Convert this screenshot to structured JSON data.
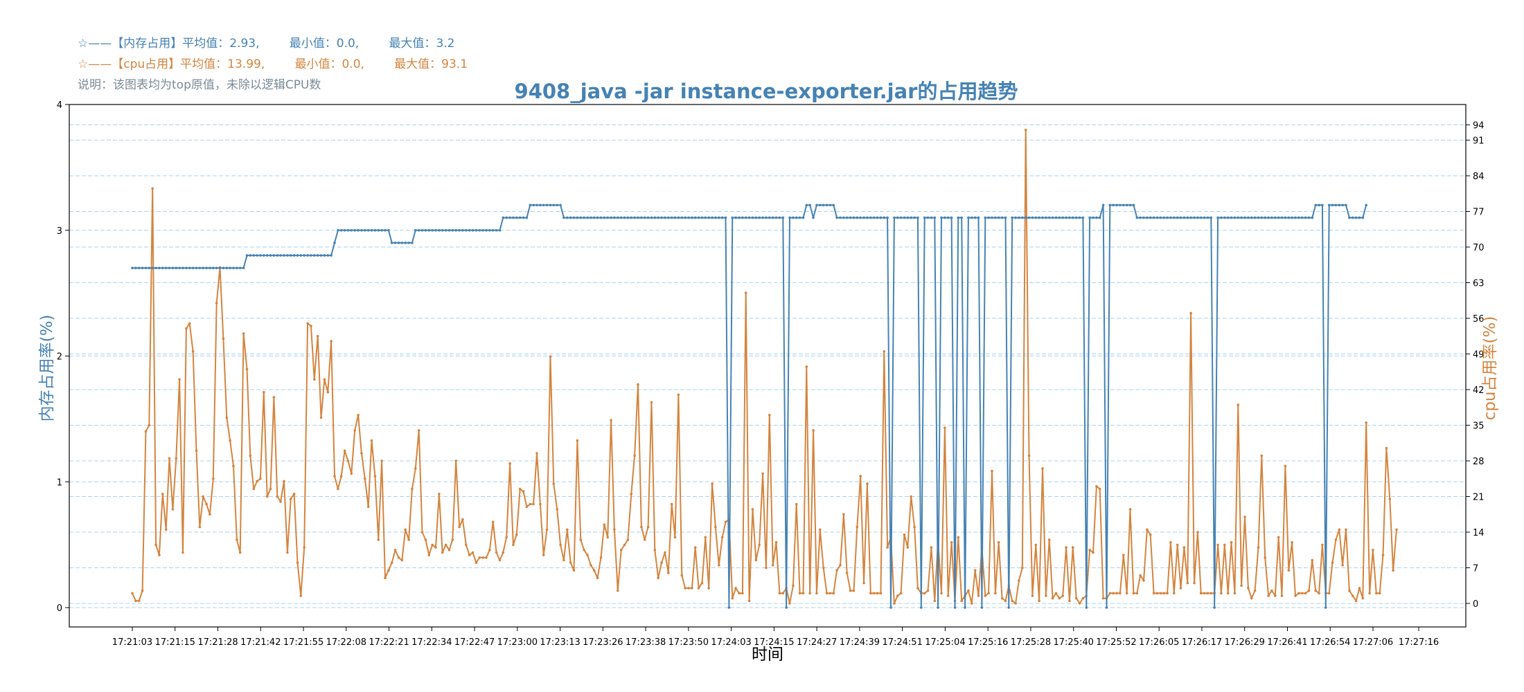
{
  "legend": {
    "memory": {
      "prefix": "☆——【内存占用】平均值：",
      "avg": "2.93,",
      "min_label": "最小值：",
      "min": "0.0,",
      "max_label": "最大值：",
      "max": "3.2"
    },
    "cpu": {
      "prefix": "☆——【cpu占用】平均值：",
      "avg": "13.99,",
      "min_label": "最小值：",
      "min": "0.0,",
      "max_label": "最大值：",
      "max": "93.1"
    },
    "note": "说明：该图表均为top原值，未除以逻辑CPU数"
  },
  "colors": {
    "memory": "#4682b4",
    "cpu": "#d4843e",
    "grid": "#a9d3ec",
    "axis": "#000000"
  },
  "chart_data": {
    "type": "line",
    "title": "9408_java -jar instance-exporter.jar的占用趋势",
    "xlabel": "时间",
    "ylabel_left": "内存占用率(%)",
    "ylabel_right": "cpu占用率(%)",
    "ylim_left": [
      0,
      4
    ],
    "ylim_right": [
      -2,
      96
    ],
    "yticks_left": [
      0,
      1,
      2,
      3,
      4
    ],
    "yticks_right": [
      0,
      7,
      14,
      21,
      28,
      35,
      42,
      49,
      56,
      63,
      70,
      77,
      84,
      91,
      94
    ],
    "x_tick_labels": [
      "17:21:03",
      "17:21:15",
      "17:21:28",
      "17:21:42",
      "17:21:55",
      "17:22:08",
      "17:22:21",
      "17:22:34",
      "17:22:47",
      "17:23:00",
      "17:23:13",
      "17:23:26",
      "17:23:38",
      "17:23:50",
      "17:24:03",
      "17:24:15",
      "17:24:27",
      "17:24:39",
      "17:24:51",
      "17:25:04",
      "17:25:16",
      "17:25:28",
      "17:25:40",
      "17:25:52",
      "17:26:05",
      "17:26:17",
      "17:26:29",
      "17:26:41",
      "17:26:54",
      "17:27:06",
      "17:27:16"
    ],
    "grid": true,
    "legend_position": "top-left",
    "series": [
      {
        "name": "内存占用",
        "axis": "left",
        "values": [
          2.7,
          2.7,
          2.7,
          2.7,
          2.7,
          2.7,
          2.7,
          2.7,
          2.7,
          2.7,
          2.7,
          2.7,
          2.7,
          2.7,
          2.7,
          2.7,
          2.7,
          2.7,
          2.7,
          2.7,
          2.7,
          2.7,
          2.7,
          2.7,
          2.7,
          2.7,
          2.7,
          2.7,
          2.7,
          2.7,
          2.7,
          2.7,
          2.7,
          2.7,
          2.8,
          2.8,
          2.8,
          2.8,
          2.8,
          2.8,
          2.8,
          2.8,
          2.8,
          2.8,
          2.8,
          2.8,
          2.8,
          2.8,
          2.8,
          2.8,
          2.8,
          2.8,
          2.8,
          2.8,
          2.8,
          2.8,
          2.8,
          2.8,
          2.8,
          2.8,
          2.9,
          3.0,
          3.0,
          3.0,
          3.0,
          3.0,
          3.0,
          3.0,
          3.0,
          3.0,
          3.0,
          3.0,
          3.0,
          3.0,
          3.0,
          3.0,
          3.0,
          2.9,
          2.9,
          2.9,
          2.9,
          2.9,
          2.9,
          2.9,
          3.0,
          3.0,
          3.0,
          3.0,
          3.0,
          3.0,
          3.0,
          3.0,
          3.0,
          3.0,
          3.0,
          3.0,
          3.0,
          3.0,
          3.0,
          3.0,
          3.0,
          3.0,
          3.0,
          3.0,
          3.0,
          3.0,
          3.0,
          3.0,
          3.0,
          3.0,
          3.1,
          3.1,
          3.1,
          3.1,
          3.1,
          3.1,
          3.1,
          3.1,
          3.2,
          3.2,
          3.2,
          3.2,
          3.2,
          3.2,
          3.2,
          3.2,
          3.2,
          3.2,
          3.1,
          3.1,
          3.1,
          3.1,
          3.1,
          3.1,
          3.1,
          3.1,
          3.1,
          3.1,
          3.1,
          3.1,
          3.1,
          3.1,
          3.1,
          3.1,
          3.1,
          3.1,
          3.1,
          3.1,
          3.1,
          3.1,
          3.1,
          3.1,
          3.1,
          3.1,
          3.1,
          3.1,
          3.1,
          3.1,
          3.1,
          3.1,
          3.1,
          3.1,
          3.1,
          3.1,
          3.1,
          3.1,
          3.1,
          3.1,
          3.1,
          3.1,
          3.1,
          3.1,
          3.1,
          3.1,
          3.1,
          3.1,
          3.1,
          0.0,
          3.1,
          3.1,
          3.1,
          3.1,
          3.1,
          3.1,
          3.1,
          3.1,
          3.1,
          3.1,
          3.1,
          3.1,
          3.1,
          3.1,
          3.1,
          3.1,
          0.0,
          3.1,
          3.1,
          3.1,
          3.1,
          3.1,
          3.2,
          3.2,
          3.1,
          3.2,
          3.2,
          3.2,
          3.2,
          3.2,
          3.2,
          3.1,
          3.1,
          3.1,
          3.1,
          3.1,
          3.1,
          3.1,
          3.1,
          3.1,
          3.1,
          3.1,
          3.1,
          3.1,
          3.1,
          3.1,
          3.1,
          0.0,
          3.1,
          3.1,
          3.1,
          3.1,
          3.1,
          3.1,
          3.1,
          3.1,
          0.0,
          3.1,
          3.1,
          3.1,
          3.1,
          0.0,
          3.1,
          3.1,
          3.1,
          3.1,
          0.0,
          3.1,
          3.1,
          0.0,
          3.1,
          3.1,
          3.1,
          3.1,
          0.0,
          3.1,
          3.1,
          3.1,
          3.1,
          3.1,
          3.1,
          3.1,
          0.0,
          3.1,
          3.1,
          3.1,
          3.1,
          3.1,
          3.1,
          3.1,
          3.1,
          3.1,
          3.1,
          3.1,
          3.1,
          3.1,
          3.1,
          3.1,
          3.1,
          3.1,
          3.1,
          3.1,
          3.1,
          3.1,
          3.1,
          0.0,
          3.1,
          3.1,
          3.1,
          3.1,
          3.2,
          0.0,
          3.2,
          3.2,
          3.2,
          3.2,
          3.2,
          3.2,
          3.2,
          3.2,
          3.1,
          3.1,
          3.1,
          3.1,
          3.1,
          3.1,
          3.1,
          3.1,
          3.1,
          3.1,
          3.1,
          3.1,
          3.1,
          3.1,
          3.1,
          3.1,
          3.1,
          3.1,
          3.1,
          3.1,
          3.1,
          3.1,
          3.1,
          0.0,
          3.1,
          3.1,
          3.1,
          3.1,
          3.1,
          3.1,
          3.1,
          3.1,
          3.1,
          3.1,
          3.1,
          3.1,
          3.1,
          3.1,
          3.1,
          3.1,
          3.1,
          3.1,
          3.1,
          3.1,
          3.1,
          3.1,
          3.1,
          3.1,
          3.1,
          3.1,
          3.1,
          3.1,
          3.1,
          3.2,
          3.2,
          3.2,
          0.0,
          3.2,
          3.2,
          3.2,
          3.2,
          3.2,
          3.2,
          3.1,
          3.1,
          3.1,
          3.1,
          3.1,
          3.2
        ]
      },
      {
        "name": "cpu占用",
        "axis": "right",
        "values": [
          2.0,
          0.5,
          0.5,
          2.5,
          33.8,
          35.0,
          81.5,
          11.5,
          9.5,
          21.5,
          14.5,
          28.5,
          18.5,
          28.5,
          44.0,
          10.0,
          54.0,
          55.0,
          49.5,
          30.0,
          15.0,
          21.0,
          19.5,
          17.5,
          24.5,
          59.0,
          66.0,
          52.0,
          36.5,
          32.0,
          27.0,
          12.5,
          10.0,
          53.0,
          46.0,
          29.0,
          22.5,
          24.0,
          24.5,
          41.5,
          21.0,
          22.5,
          40.5,
          21.0,
          20.0,
          24.0,
          10.0,
          20.5,
          21.5,
          8.0,
          1.5,
          11.0,
          55.0,
          54.5,
          44.0,
          52.5,
          36.5,
          44.0,
          41.5,
          51.5,
          25.0,
          22.5,
          25.0,
          30.0,
          28.0,
          25.5,
          34.0,
          37.0,
          29.5,
          24.5,
          19.0,
          32.0,
          25.0,
          12.5,
          28.0,
          5.0,
          6.5,
          8.0,
          10.5,
          9.0,
          8.5,
          14.5,
          12.5,
          22.5,
          26.5,
          34.0,
          14.0,
          12.5,
          9.5,
          11.5,
          11.0,
          21.5,
          10.0,
          11.5,
          10.5,
          12.5,
          28.0,
          15.0,
          16.5,
          11.5,
          9.5,
          10.0,
          8.0,
          9.0,
          9.0,
          9.0,
          10.5,
          16.0,
          10.0,
          8.5,
          10.0,
          13.0,
          27.5,
          11.5,
          13.5,
          22.5,
          22.0,
          19.0,
          19.5,
          19.5,
          29.5,
          19.5,
          9.5,
          14.5,
          48.5,
          23.5,
          18.5,
          11.5,
          8.5,
          14.5,
          8.0,
          6.5,
          32.0,
          12.5,
          10.5,
          9.5,
          7.5,
          6.5,
          5.0,
          9.0,
          15.5,
          13.0,
          36.0,
          14.5,
          2.5,
          10.5,
          11.5,
          12.5,
          21.5,
          29.0,
          43.0,
          15.0,
          12.5,
          15.0,
          39.5,
          10.5,
          5.0,
          8.0,
          10.0,
          6.0,
          19.5,
          13.0,
          41.0,
          5.5,
          3.0,
          3.0,
          3.0,
          11.0,
          3.0,
          4.0,
          13.0,
          3.0,
          23.5,
          15.0,
          7.5,
          13.0,
          16.0,
          16.5,
          1.0,
          3.0,
          2.0,
          2.0,
          61.0,
          0.5,
          18.5,
          8.5,
          11.5,
          25.5,
          7.0,
          37.0,
          7.5,
          12.0,
          2.0,
          2.0,
          3.0,
          0.0,
          3.5,
          19.5,
          2.0,
          2.0,
          46.5,
          2.0,
          34.0,
          2.0,
          14.5,
          7.0,
          2.0,
          2.0,
          2.0,
          6.5,
          7.5,
          17.5,
          6.0,
          2.5,
          2.5,
          15.0,
          25.0,
          4.0,
          23.5,
          2.0,
          2.0,
          2.0,
          2.0,
          49.5,
          11.0,
          13.0,
          0.0,
          1.5,
          2.0,
          13.5,
          11.0,
          21.0,
          15.0,
          3.0,
          2.0,
          2.0,
          2.5,
          11.0,
          0.5,
          12.5,
          2.0,
          34.5,
          1.5,
          12.0,
          0.5,
          13.0,
          0.5,
          1.5,
          2.5,
          0.0,
          6.5,
          1.5,
          11.0,
          1.5,
          2.0,
          26.0,
          2.0,
          12.0,
          1.0,
          0.5,
          3.5,
          0.5,
          0.0,
          4.5,
          7.0,
          93.0,
          29.0,
          1.5,
          11.5,
          0.5,
          26.5,
          1.5,
          12.5,
          1.0,
          2.0,
          1.0,
          1.5,
          11.0,
          0.5,
          11.0,
          1.0,
          0.0,
          1.0,
          1.5,
          10.5,
          10.0,
          23.0,
          22.5,
          1.0,
          1.0,
          2.0,
          2.0,
          2.0,
          2.0,
          9.5,
          2.0,
          18.5,
          2.0,
          2.0,
          5.5,
          4.5,
          14.5,
          13.5,
          2.0,
          2.0,
          2.0,
          2.0,
          2.0,
          12.0,
          2.0,
          11.5,
          3.0,
          11.0,
          4.0,
          57.0,
          4.0,
          14.0,
          2.0,
          2.0,
          2.0,
          2.0,
          2.0,
          11.5,
          2.0,
          11.5,
          2.0,
          12.0,
          2.0,
          39.0,
          3.5,
          17.0,
          3.0,
          1.0,
          2.5,
          11.0,
          29.0,
          9.0,
          1.5,
          2.5,
          1.5,
          13.0,
          1.5,
          27.0,
          6.5,
          12.0,
          1.5,
          2.0,
          2.0,
          2.0,
          2.5,
          8.5,
          2.5,
          2.0,
          11.5,
          2.0,
          2.0,
          8.0,
          12.5,
          14.5,
          7.5,
          14.5,
          2.5,
          1.5,
          0.5,
          3.0,
          1.0,
          35.5,
          2.0,
          10.5,
          2.0,
          2.0,
          9.5,
          30.5,
          20.5,
          6.5,
          14.5
        ]
      }
    ]
  }
}
